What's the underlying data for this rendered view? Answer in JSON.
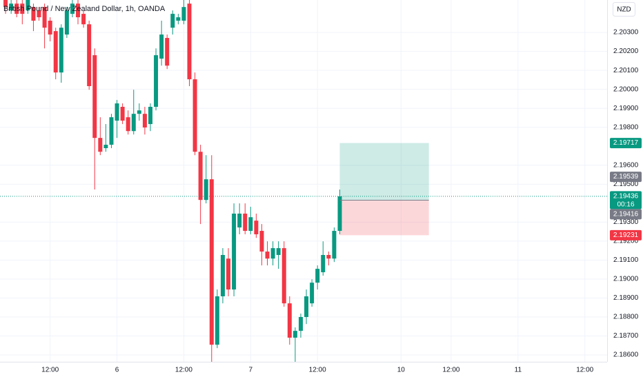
{
  "chart_data": {
    "type": "candlestick",
    "title": "British Pound / New Zealand Dollar, 1h, OANDA",
    "currency": "NZD",
    "up_color": "#089981",
    "down_color": "#f23645",
    "grid": true,
    "x": [
      -8,
      -7,
      -6,
      -5,
      -4,
      -3,
      -2,
      -1,
      0,
      1,
      2,
      3,
      4,
      5,
      6,
      7,
      8,
      9,
      10,
      11,
      12,
      13,
      14,
      15,
      16,
      17,
      18,
      19,
      20,
      21,
      22,
      23,
      24,
      25,
      26,
      27,
      28,
      29,
      30,
      31,
      32,
      33,
      34,
      35,
      36,
      37,
      38,
      39,
      40,
      41,
      42,
      43,
      44,
      45,
      46,
      47,
      48,
      49,
      50,
      51,
      52
    ],
    "open": [
      2.20471,
      2.20416,
      2.20452,
      2.20452,
      2.20416,
      2.20434,
      2.20416,
      2.20434,
      2.20362,
      2.20307,
      2.20089,
      2.20289,
      2.20398,
      2.20452,
      2.20398,
      2.20343,
      2.2018,
      2.19744,
      2.1969,
      2.19708,
      2.19835,
      2.19908,
      2.19853,
      2.1978,
      2.19871,
      2.19871,
      2.19817,
      2.19908,
      2.20162,
      2.20271,
      2.20325,
      2.20362,
      2.20362,
      2.20452,
      2.20053,
      2.19671,
      2.19417,
      2.19526,
      2.18654,
      2.18909,
      2.19108,
      2.18945,
      2.19272,
      2.19345,
      2.19254,
      2.19308,
      2.19254,
      2.19145,
      2.19108,
      2.19127,
      2.19163,
      2.18872,
      2.18691,
      2.18727,
      2.188,
      2.18872,
      2.18981,
      2.19036,
      2.19127,
      2.19108,
      2.19254
    ],
    "high": [
      2.20471,
      2.20471,
      2.20471,
      2.20471,
      2.20471,
      2.20452,
      2.20434,
      2.20452,
      2.2038,
      2.20325,
      2.20343,
      2.20434,
      2.20471,
      2.20471,
      2.20416,
      2.20362,
      2.20216,
      2.19853,
      2.19817,
      2.19871,
      2.19944,
      2.19926,
      2.19889,
      2.19998,
      2.19926,
      2.19908,
      2.19926,
      2.20216,
      2.20362,
      2.20289,
      2.20416,
      2.20398,
      2.20471,
      2.20471,
      2.20089,
      2.19708,
      2.19653,
      2.19653,
      2.18945,
      2.19163,
      2.19163,
      2.19399,
      2.19399,
      2.19399,
      2.19381,
      2.19345,
      2.1929,
      2.19199,
      2.19199,
      2.19199,
      2.19199,
      2.18909,
      2.18745,
      2.18818,
      2.18945,
      2.18999,
      2.19072,
      2.19199,
      2.19145,
      2.19272,
      2.19472
    ],
    "low": [
      2.20398,
      2.20398,
      2.2038,
      2.20343,
      2.20398,
      2.20307,
      2.20362,
      2.20216,
      2.20253,
      2.20053,
      2.20035,
      2.20271,
      2.2038,
      2.20343,
      2.20325,
      2.19998,
      2.19472,
      2.19653,
      2.19671,
      2.1969,
      2.19744,
      2.19817,
      2.19762,
      2.19762,
      2.19835,
      2.19762,
      2.1978,
      2.19889,
      2.20125,
      2.20107,
      2.20289,
      2.20343,
      2.20343,
      2.20017,
      2.19653,
      2.1929,
      2.19399,
      2.18564,
      2.18636,
      2.18872,
      2.18909,
      2.18909,
      2.19236,
      2.19236,
      2.19236,
      2.19217,
      2.19072,
      2.19072,
      2.19072,
      2.19054,
      2.18854,
      2.18654,
      2.18564,
      2.18691,
      2.18763,
      2.18854,
      2.18945,
      2.19018,
      2.19072,
      2.1909,
      2.19236
    ],
    "close": [
      2.20434,
      2.20452,
      2.20398,
      2.20398,
      2.20471,
      2.20362,
      2.2038,
      2.20325,
      2.20289,
      2.20089,
      2.20325,
      2.20416,
      2.20452,
      2.2038,
      2.20343,
      2.20017,
      2.19744,
      2.19671,
      2.19708,
      2.19853,
      2.19926,
      2.19835,
      2.1978,
      2.19871,
      2.19889,
      2.19799,
      2.19908,
      2.2018,
      2.20289,
      2.20125,
      2.20398,
      2.2038,
      2.20434,
      2.20053,
      2.19671,
      2.19417,
      2.19526,
      2.18654,
      2.18909,
      2.19127,
      2.18945,
      2.19345,
      2.19345,
      2.19254,
      2.19326,
      2.19236,
      2.19145,
      2.19108,
      2.19163,
      2.19163,
      2.18872,
      2.18691,
      2.18727,
      2.188,
      2.18909,
      2.18981,
      2.19054,
      2.19127,
      2.19108,
      2.19254,
      2.19436
    ],
    "xlim": [
      -9,
      100
    ],
    "ylim": [
      2.18564,
      2.20471
    ],
    "xticks": [
      {
        "value": 0,
        "label": "12:00"
      },
      {
        "value": 12,
        "label": "6"
      },
      {
        "value": 24,
        "label": "12:00"
      },
      {
        "value": 36,
        "label": "7"
      },
      {
        "value": 48,
        "label": "12:00"
      },
      {
        "value": 63,
        "label": "10"
      },
      {
        "value": 72,
        "label": "12:00"
      },
      {
        "value": 84,
        "label": "11"
      },
      {
        "value": 96,
        "label": "12:00"
      }
    ],
    "yticks": [
      {
        "value": 2.186,
        "label": "2.18600"
      },
      {
        "value": 2.187,
        "label": "2.18700"
      },
      {
        "value": 2.188,
        "label": "2.18800"
      },
      {
        "value": 2.189,
        "label": "2.18900"
      },
      {
        "value": 2.19,
        "label": "2.19000"
      },
      {
        "value": 2.191,
        "label": "2.19100"
      },
      {
        "value": 2.192,
        "label": "2.19200"
      },
      {
        "value": 2.193,
        "label": "2.19300"
      },
      {
        "value": 2.195,
        "label": "2.19500"
      },
      {
        "value": 2.196,
        "label": "2.19600"
      },
      {
        "value": 2.198,
        "label": "2.19800"
      },
      {
        "value": 2.199,
        "label": "2.19900"
      },
      {
        "value": 2.2,
        "label": "2.20000"
      },
      {
        "value": 2.201,
        "label": "2.20100"
      },
      {
        "value": 2.202,
        "label": "2.20200"
      },
      {
        "value": 2.203,
        "label": "2.20300"
      }
    ],
    "last_price": 2.19436,
    "countdown": "00:16",
    "marker_price": 2.19539,
    "position": {
      "entry": 2.19416,
      "target": 2.19717,
      "stop": 2.19231,
      "start": 52,
      "end": 68
    }
  }
}
